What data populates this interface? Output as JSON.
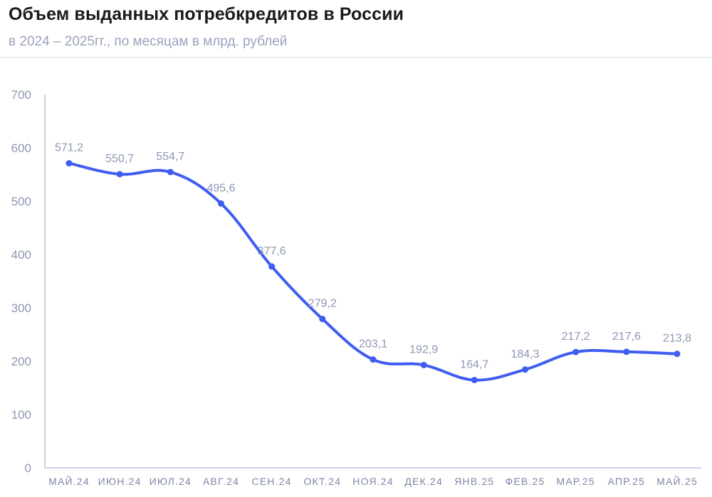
{
  "header": {
    "title": "Объем выданных потребкредитов в России",
    "subtitle": "в 2024 – 2025гг., по месяцам в млрд. рублей"
  },
  "colors": {
    "line": "#3f5df0",
    "axis": "#b8bfdc",
    "text": "#8e97b4"
  },
  "chart_data": {
    "type": "line",
    "title": "Объем выданных потребкредитов в России",
    "subtitle": "в 2024 – 2025гг., по месяцам в млрд. рублей",
    "xlabel": "",
    "ylabel": "",
    "ylim": [
      0,
      700
    ],
    "yticks": [
      "0",
      "100",
      "200",
      "300",
      "400",
      "500",
      "600",
      "700"
    ],
    "yticks_values": [
      0,
      100,
      200,
      300,
      400,
      500,
      600,
      700
    ],
    "grid": false,
    "categories": [
      "МАЙ.24",
      "ИЮН.24",
      "ИЮЛ.24",
      "АВГ.24",
      "СЕН.24",
      "ОКТ.24",
      "НОЯ.24",
      "ДЕК.24",
      "ЯНВ.25",
      "ФЕВ.25",
      "МАР.25",
      "АПР.25",
      "МАЙ.25"
    ],
    "values": [
      571.2,
      550.7,
      554.7,
      495.6,
      377.6,
      279.2,
      203.1,
      192.9,
      164.7,
      184.3,
      217.2,
      217.6,
      213.8
    ],
    "data_labels": [
      "571,2",
      "550,7",
      "554,7",
      "495,6",
      "377,6",
      "279,2",
      "203,1",
      "192,9",
      "164,7",
      "184,3",
      "217,2",
      "217,6",
      "213,8"
    ]
  }
}
